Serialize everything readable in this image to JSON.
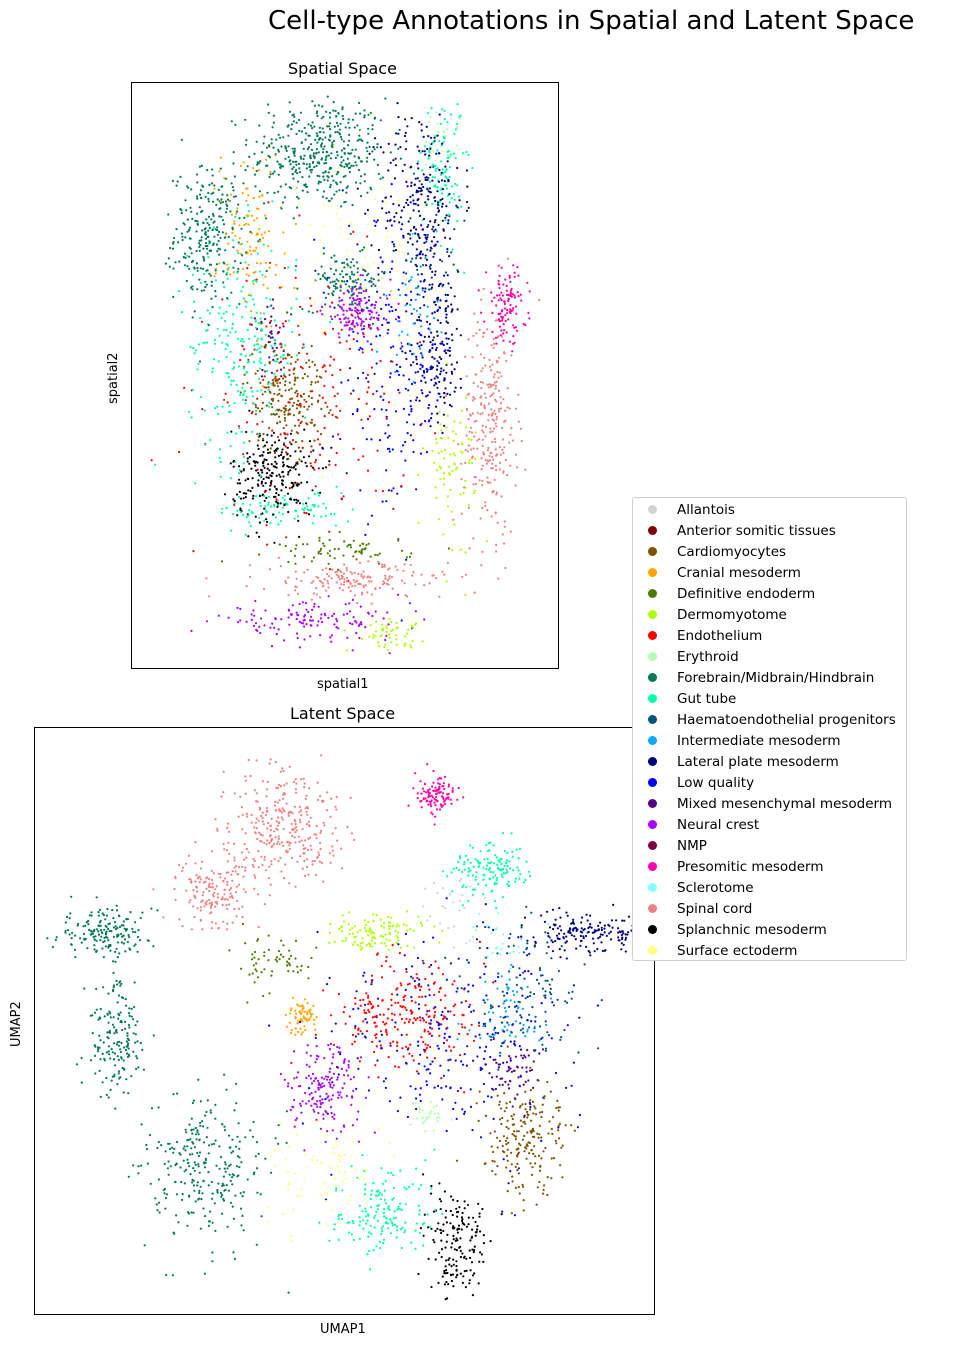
{
  "figure": {
    "title": "Cell-type Annotations in Spatial and Latent Space"
  },
  "chart_data": [
    {
      "type": "scatter",
      "title": "Spatial Space",
      "xlabel": "spatial1",
      "ylabel": "spatial2",
      "ticks": "none",
      "clusters": [
        {
          "category": "Forebrain/Midbrain/Hindbrain",
          "center": [
            0.44,
            0.88
          ],
          "spread": [
            0.1,
            0.06
          ],
          "count": 420
        },
        {
          "category": "Forebrain/Midbrain/Hindbrain",
          "center": [
            0.18,
            0.74
          ],
          "spread": [
            0.05,
            0.07
          ],
          "count": 260
        },
        {
          "category": "Forebrain/Midbrain/Hindbrain",
          "center": [
            0.5,
            0.66
          ],
          "spread": [
            0.06,
            0.03
          ],
          "count": 120
        },
        {
          "category": "Lateral plate mesoderm",
          "center": [
            0.68,
            0.8
          ],
          "spread": [
            0.06,
            0.1
          ],
          "count": 240
        },
        {
          "category": "Lateral plate mesoderm",
          "center": [
            0.72,
            0.55
          ],
          "spread": [
            0.04,
            0.08
          ],
          "count": 160
        },
        {
          "category": "Gut tube",
          "center": [
            0.26,
            0.55
          ],
          "spread": [
            0.08,
            0.12
          ],
          "count": 240
        },
        {
          "category": "Gut tube",
          "center": [
            0.73,
            0.86
          ],
          "spread": [
            0.03,
            0.08
          ],
          "count": 110
        },
        {
          "category": "Gut tube",
          "center": [
            0.36,
            0.27
          ],
          "spread": [
            0.1,
            0.02
          ],
          "count": 90
        },
        {
          "category": "Cardiomyocytes",
          "center": [
            0.36,
            0.47
          ],
          "spread": [
            0.06,
            0.06
          ],
          "count": 220
        },
        {
          "category": "Splanchnic mesoderm",
          "center": [
            0.33,
            0.33
          ],
          "spread": [
            0.06,
            0.05
          ],
          "count": 240
        },
        {
          "category": "Spinal cord",
          "center": [
            0.84,
            0.42
          ],
          "spread": [
            0.04,
            0.12
          ],
          "count": 260
        },
        {
          "category": "Spinal cord",
          "center": [
            0.52,
            0.15
          ],
          "spread": [
            0.14,
            0.02
          ],
          "count": 160
        },
        {
          "category": "Presomitic mesoderm",
          "center": [
            0.88,
            0.62
          ],
          "spread": [
            0.03,
            0.04
          ],
          "count": 110
        },
        {
          "category": "Neural crest",
          "center": [
            0.53,
            0.61
          ],
          "spread": [
            0.05,
            0.03
          ],
          "count": 140
        },
        {
          "category": "Neural crest",
          "center": [
            0.42,
            0.08
          ],
          "spread": [
            0.14,
            0.02
          ],
          "count": 130
        },
        {
          "category": "Low quality",
          "center": [
            0.62,
            0.52
          ],
          "spread": [
            0.08,
            0.16
          ],
          "count": 220
        },
        {
          "category": "Endothelium",
          "center": [
            0.42,
            0.46
          ],
          "spread": [
            0.14,
            0.14
          ],
          "count": 180
        },
        {
          "category": "Dermomyotome",
          "center": [
            0.75,
            0.35
          ],
          "spread": [
            0.04,
            0.08
          ],
          "count": 80
        },
        {
          "category": "Dermomyotome",
          "center": [
            0.6,
            0.06
          ],
          "spread": [
            0.05,
            0.015
          ],
          "count": 50
        },
        {
          "category": "Cranial mesoderm",
          "center": [
            0.28,
            0.74
          ],
          "spread": [
            0.05,
            0.1
          ],
          "count": 110
        },
        {
          "category": "Surface ectoderm",
          "center": [
            0.56,
            0.68
          ],
          "spread": [
            0.1,
            0.16
          ],
          "count": 110
        },
        {
          "category": "Definitive endoderm",
          "center": [
            0.5,
            0.2
          ],
          "spread": [
            0.1,
            0.015
          ],
          "count": 70
        },
        {
          "category": "Erythroid",
          "center": [
            0.72,
            0.9
          ],
          "spread": [
            0.03,
            0.03
          ],
          "count": 30
        },
        {
          "category": "Mixed mesenchymal mesoderm",
          "center": [
            0.33,
            0.56
          ],
          "spread": [
            0.03,
            0.04
          ],
          "count": 40
        },
        {
          "category": "Intermediate mesoderm",
          "center": [
            0.66,
            0.6
          ],
          "spread": [
            0.04,
            0.06
          ],
          "count": 40
        },
        {
          "category": "Haematoendothelial progenitors",
          "center": [
            0.7,
            0.7
          ],
          "spread": [
            0.05,
            0.06
          ],
          "count": 40
        }
      ]
    },
    {
      "type": "scatter",
      "title": "Latent Space",
      "xlabel": "UMAP1",
      "ylabel": "UMAP2",
      "ticks": "none",
      "clusters": [
        {
          "category": "Forebrain/Midbrain/Hindbrain",
          "center": [
            0.11,
            0.65
          ],
          "spread": [
            0.05,
            0.025
          ],
          "count": 170
        },
        {
          "category": "Forebrain/Midbrain/Hindbrain",
          "center": [
            0.13,
            0.47
          ],
          "spread": [
            0.03,
            0.06
          ],
          "count": 170
        },
        {
          "category": "Forebrain/Midbrain/Hindbrain",
          "center": [
            0.28,
            0.25
          ],
          "spread": [
            0.06,
            0.08
          ],
          "count": 280
        },
        {
          "category": "Spinal cord",
          "center": [
            0.4,
            0.83
          ],
          "spread": [
            0.06,
            0.06
          ],
          "count": 300
        },
        {
          "category": "Spinal cord",
          "center": [
            0.29,
            0.72
          ],
          "spread": [
            0.04,
            0.04
          ],
          "count": 160
        },
        {
          "category": "Low quality",
          "center": [
            0.66,
            0.48
          ],
          "spread": [
            0.12,
            0.12
          ],
          "count": 280
        },
        {
          "category": "Endothelium",
          "center": [
            0.6,
            0.51
          ],
          "spread": [
            0.07,
            0.06
          ],
          "count": 240
        },
        {
          "category": "Presomitic mesoderm",
          "center": [
            0.645,
            0.89
          ],
          "spread": [
            0.02,
            0.02
          ],
          "count": 110
        },
        {
          "category": "Gut tube",
          "center": [
            0.74,
            0.76
          ],
          "spread": [
            0.04,
            0.03
          ],
          "count": 140
        },
        {
          "category": "Gut tube",
          "center": [
            0.56,
            0.17
          ],
          "spread": [
            0.05,
            0.05
          ],
          "count": 160
        },
        {
          "category": "Lateral plate mesoderm",
          "center": [
            0.89,
            0.65
          ],
          "spread": [
            0.06,
            0.02
          ],
          "count": 170
        },
        {
          "category": "Cardiomyocytes",
          "center": [
            0.79,
            0.3
          ],
          "spread": [
            0.04,
            0.06
          ],
          "count": 200
        },
        {
          "category": "Splanchnic mesoderm",
          "center": [
            0.68,
            0.12
          ],
          "spread": [
            0.03,
            0.06
          ],
          "count": 170
        },
        {
          "category": "Neural crest",
          "center": [
            0.47,
            0.39
          ],
          "spread": [
            0.04,
            0.05
          ],
          "count": 160
        },
        {
          "category": "Dermomyotome",
          "center": [
            0.55,
            0.65
          ],
          "spread": [
            0.05,
            0.02
          ],
          "count": 110
        },
        {
          "category": "Cranial mesoderm",
          "center": [
            0.43,
            0.51
          ],
          "spread": [
            0.015,
            0.02
          ],
          "count": 70
        },
        {
          "category": "Surface ectoderm",
          "center": [
            0.47,
            0.24
          ],
          "spread": [
            0.06,
            0.06
          ],
          "count": 80
        },
        {
          "category": "Haematoendothelial progenitors",
          "center": [
            0.8,
            0.55
          ],
          "spread": [
            0.06,
            0.08
          ],
          "count": 120
        },
        {
          "category": "Intermediate mesoderm",
          "center": [
            0.76,
            0.52
          ],
          "spread": [
            0.04,
            0.04
          ],
          "count": 60
        },
        {
          "category": "Mixed mesenchymal mesoderm",
          "center": [
            0.77,
            0.42
          ],
          "spread": [
            0.03,
            0.04
          ],
          "count": 60
        },
        {
          "category": "Definitive endoderm",
          "center": [
            0.38,
            0.6
          ],
          "spread": [
            0.04,
            0.03
          ],
          "count": 60
        },
        {
          "category": "Erythroid",
          "center": [
            0.63,
            0.34
          ],
          "spread": [
            0.02,
            0.02
          ],
          "count": 30
        },
        {
          "category": "Sclerotome",
          "center": [
            0.75,
            0.64
          ],
          "spread": [
            0.03,
            0.03
          ],
          "count": 25
        },
        {
          "category": "Allantois",
          "center": [
            0.66,
            0.7
          ],
          "spread": [
            0.05,
            0.05
          ],
          "count": 25
        }
      ]
    }
  ],
  "legend": {
    "placement": "right",
    "items": [
      {
        "label": "Allantois",
        "color": "#d3d3d3"
      },
      {
        "label": "Anterior somitic tissues",
        "color": "#800000"
      },
      {
        "label": "Cardiomyocytes",
        "color": "#7f5200"
      },
      {
        "label": "Cranial mesoderm",
        "color": "#ffa500"
      },
      {
        "label": "Definitive endoderm",
        "color": "#4d7a00"
      },
      {
        "label": "Dermomyotome",
        "color": "#aaff00"
      },
      {
        "label": "Endothelium",
        "color": "#ff0000"
      },
      {
        "label": "Erythroid",
        "color": "#b2ffb2"
      },
      {
        "label": "Forebrain/Midbrain/Hindbrain",
        "color": "#007a55"
      },
      {
        "label": "Gut tube",
        "color": "#00ffaa"
      },
      {
        "label": "Haematoendothelial progenitors",
        "color": "#005580"
      },
      {
        "label": "Intermediate mesoderm",
        "color": "#00aaff"
      },
      {
        "label": "Lateral plate mesoderm",
        "color": "#000080"
      },
      {
        "label": "Low quality",
        "color": "#0000ff"
      },
      {
        "label": "Mixed mesenchymal mesoderm",
        "color": "#55007f"
      },
      {
        "label": "Neural crest",
        "color": "#aa00ff"
      },
      {
        "label": "NMP",
        "color": "#800040"
      },
      {
        "label": "Presomitic mesoderm",
        "color": "#ff00aa"
      },
      {
        "label": "Sclerotome",
        "color": "#80ffff"
      },
      {
        "label": "Spinal cord",
        "color": "#f08080"
      },
      {
        "label": "Splanchnic mesoderm",
        "color": "#000000"
      },
      {
        "label": "Surface ectoderm",
        "color": "#ffff80"
      }
    ]
  }
}
